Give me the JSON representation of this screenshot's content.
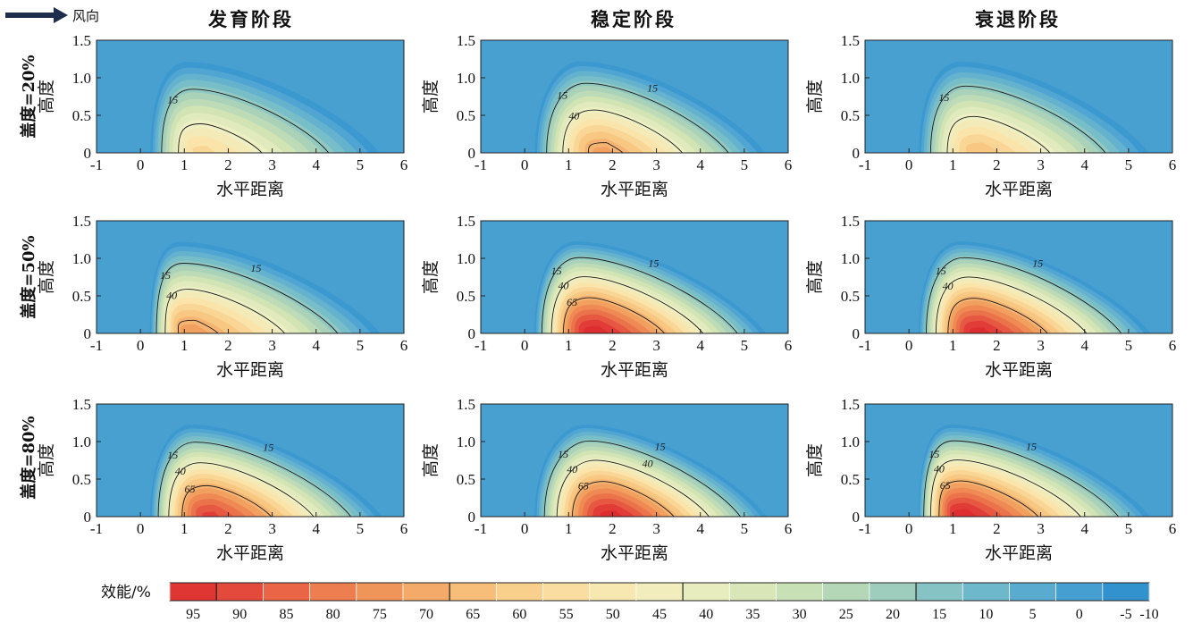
{
  "wind_label": "风向",
  "colorbar": {
    "title": "效能/%",
    "ticks": [
      "95",
      "90",
      "85",
      "80",
      "75",
      "70",
      "65",
      "60",
      "55",
      "50",
      "45",
      "40",
      "35",
      "30",
      "25",
      "20",
      "15",
      "10",
      "5",
      "0",
      "-5",
      "-10"
    ]
  },
  "chart_data": {
    "type": "heatmap",
    "column_titles": [
      "发育阶段",
      "稳定阶段",
      "衰退阶段"
    ],
    "row_labels": [
      "盖度=20%",
      "盖度=50%",
      "盖度=80%"
    ],
    "xlabel": "水平距离",
    "ylabel": "高度",
    "xlim": [
      -1,
      6
    ],
    "ylim": [
      0,
      1.5
    ],
    "xticks": [
      "-1",
      "0",
      "1",
      "2",
      "3",
      "4",
      "5",
      "6"
    ],
    "yticks": [
      "0",
      "0.5",
      "1.0",
      "1.5"
    ],
    "value_unit": "%",
    "value_range": [
      -10,
      97.5
    ],
    "contour_levels": [
      15,
      40,
      65
    ],
    "panels": [
      {
        "row": 0,
        "col": 0,
        "peak": 55,
        "peak_x": 1.4,
        "labels": [
          "15"
        ]
      },
      {
        "row": 0,
        "col": 1,
        "peak": 70,
        "peak_x": 1.8,
        "labels": [
          "15",
          "15",
          "40"
        ]
      },
      {
        "row": 0,
        "col": 2,
        "peak": 62,
        "peak_x": 1.6,
        "labels": [
          "15"
        ]
      },
      {
        "row": 1,
        "col": 0,
        "peak": 72,
        "peak_x": 1.1,
        "labels": [
          "15",
          "40",
          "15"
        ]
      },
      {
        "row": 1,
        "col": 1,
        "peak": 97,
        "peak_x": 1.6,
        "labels": [
          "15",
          "40",
          "65",
          "15"
        ]
      },
      {
        "row": 1,
        "col": 2,
        "peak": 96,
        "peak_x": 1.6,
        "labels": [
          "15",
          "40",
          "15"
        ]
      },
      {
        "row": 2,
        "col": 0,
        "peak": 90,
        "peak_x": 1.6,
        "labels": [
          "15",
          "40",
          "65",
          "15"
        ]
      },
      {
        "row": 2,
        "col": 1,
        "peak": 96,
        "peak_x": 2.0,
        "labels": [
          "15",
          "40",
          "65",
          "40",
          "15"
        ]
      },
      {
        "row": 2,
        "col": 2,
        "peak": 97,
        "peak_x": 1.2,
        "labels": [
          "15",
          "40",
          "65",
          "15"
        ]
      }
    ]
  }
}
